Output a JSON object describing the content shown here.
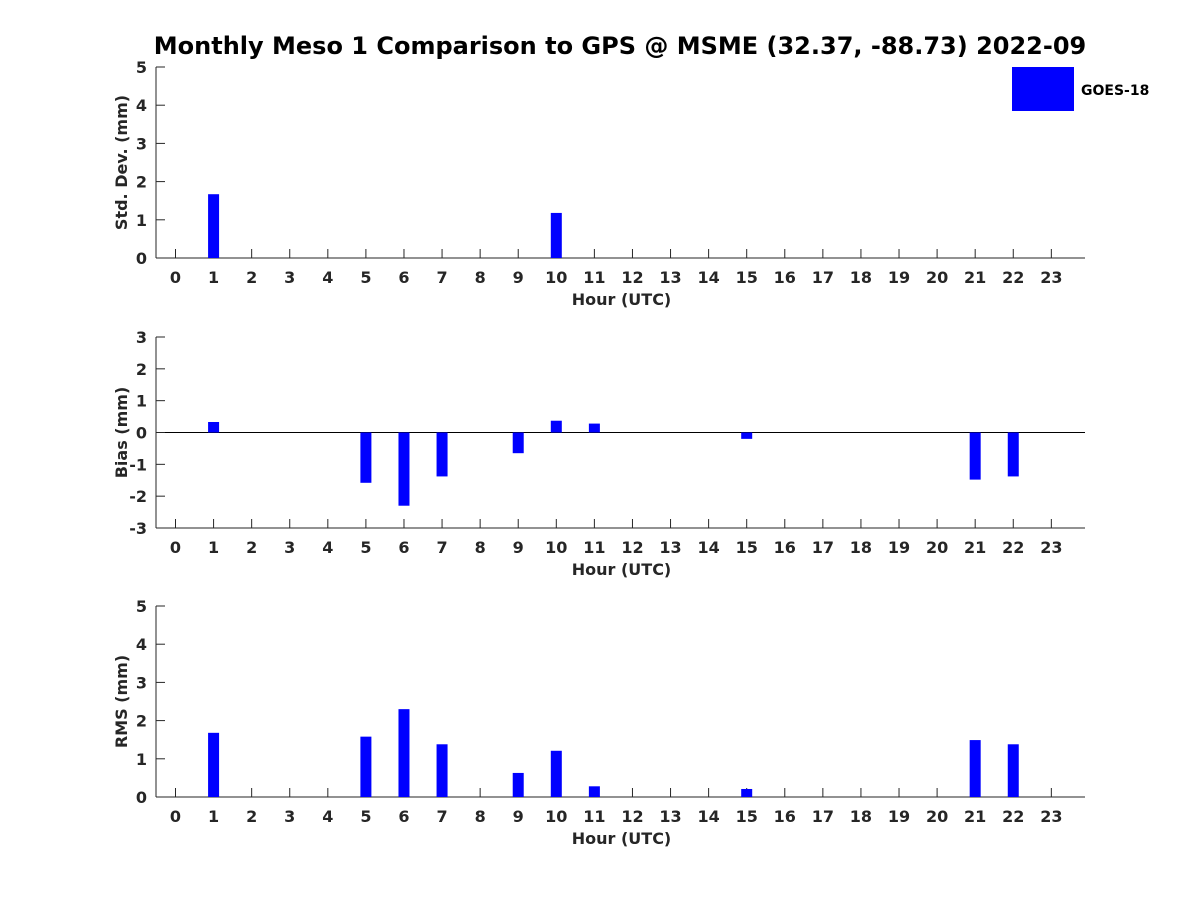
{
  "title": "Monthly Meso 1 Comparison to GPS @ MSME (32.37, -88.73) 2022-09",
  "legend": {
    "label": "GOES-18",
    "color": "#0000ff",
    "placement": "top-right"
  },
  "colors": {
    "bar": "#0000ff",
    "axis": "#262626",
    "text": "#262626",
    "title": "#000000"
  },
  "chart_data": [
    {
      "type": "bar",
      "ylabel": "Std. Dev. (mm)",
      "xlabel": "Hour (UTC)",
      "ylim": [
        0,
        5
      ],
      "yticks": [
        0,
        1,
        2,
        3,
        4,
        5
      ],
      "zero_line": false,
      "categories": [
        "0",
        "1",
        "2",
        "3",
        "4",
        "5",
        "6",
        "7",
        "8",
        "9",
        "10",
        "11",
        "12",
        "13",
        "14",
        "15",
        "16",
        "17",
        "18",
        "19",
        "20",
        "21",
        "22",
        "23"
      ],
      "series": [
        {
          "name": "GOES-18",
          "values": [
            null,
            1.67,
            null,
            null,
            null,
            null,
            null,
            null,
            null,
            null,
            1.18,
            null,
            null,
            null,
            null,
            null,
            null,
            null,
            null,
            null,
            null,
            null,
            null,
            null
          ]
        }
      ]
    },
    {
      "type": "bar",
      "ylabel": "Bias (mm)",
      "xlabel": "Hour (UTC)",
      "ylim": [
        -3,
        3
      ],
      "yticks": [
        -3,
        -2,
        -1,
        0,
        1,
        2,
        3
      ],
      "zero_line": true,
      "categories": [
        "0",
        "1",
        "2",
        "3",
        "4",
        "5",
        "6",
        "7",
        "8",
        "9",
        "10",
        "11",
        "12",
        "13",
        "14",
        "15",
        "16",
        "17",
        "18",
        "19",
        "20",
        "21",
        "22",
        "23"
      ],
      "series": [
        {
          "name": "GOES-18",
          "values": [
            null,
            0.33,
            null,
            null,
            null,
            -1.58,
            -2.3,
            -1.38,
            null,
            -0.65,
            0.37,
            0.28,
            null,
            null,
            null,
            -0.2,
            null,
            null,
            null,
            null,
            null,
            -1.48,
            -1.38,
            null
          ]
        }
      ]
    },
    {
      "type": "bar",
      "ylabel": "RMS (mm)",
      "xlabel": "Hour (UTC)",
      "ylim": [
        0,
        5
      ],
      "yticks": [
        0,
        1,
        2,
        3,
        4,
        5
      ],
      "zero_line": false,
      "categories": [
        "0",
        "1",
        "2",
        "3",
        "4",
        "5",
        "6",
        "7",
        "8",
        "9",
        "10",
        "11",
        "12",
        "13",
        "14",
        "15",
        "16",
        "17",
        "18",
        "19",
        "20",
        "21",
        "22",
        "23"
      ],
      "series": [
        {
          "name": "GOES-18",
          "values": [
            null,
            1.68,
            null,
            null,
            null,
            1.58,
            2.3,
            1.38,
            null,
            0.63,
            1.21,
            0.28,
            null,
            null,
            null,
            0.21,
            null,
            null,
            null,
            null,
            null,
            1.49,
            1.38,
            null
          ]
        }
      ]
    }
  ]
}
